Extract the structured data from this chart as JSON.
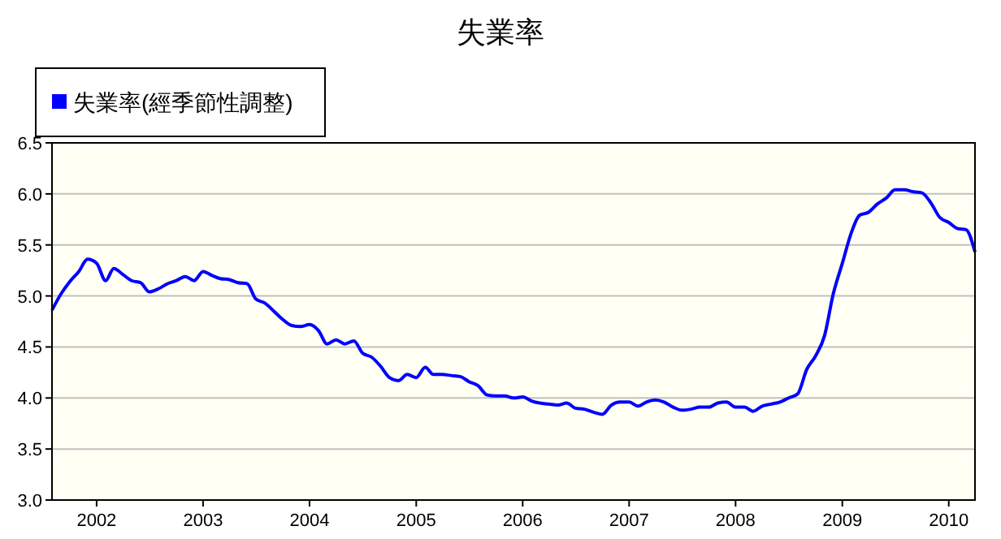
{
  "chart_data": {
    "type": "line",
    "title": "失業率",
    "legend": "top left",
    "grid": "y",
    "marker": "none",
    "line_style": "solid",
    "xlim": [
      "2001-08",
      "2010-04"
    ],
    "xticks": [
      {
        "value": "2002-01",
        "label": "2002"
      },
      {
        "value": "2003-01",
        "label": "2003"
      },
      {
        "value": "2004-01",
        "label": "2004"
      },
      {
        "value": "2005-01",
        "label": "2005"
      },
      {
        "value": "2006-01",
        "label": "2006"
      },
      {
        "value": "2007-01",
        "label": "2007"
      },
      {
        "value": "2008-01",
        "label": "2008"
      },
      {
        "value": "2009-01",
        "label": "2009"
      },
      {
        "value": "2010-01",
        "label": "2010"
      }
    ],
    "ylim": [
      3.0,
      6.5
    ],
    "yticks": [
      {
        "value": 3,
        "label": "3.0"
      },
      {
        "value": 3.5,
        "label": "3.5"
      },
      {
        "value": 4,
        "label": "4.0"
      },
      {
        "value": 4.5,
        "label": "4.5"
      },
      {
        "value": 5,
        "label": "5.0"
      },
      {
        "value": 5.5,
        "label": "5.5"
      },
      {
        "value": 6,
        "label": "6.0"
      },
      {
        "value": 6.5,
        "label": "6.5"
      }
    ],
    "x": [
      "2001-08",
      "2001-09",
      "2001-10",
      "2001-11",
      "2001-12",
      "2002-01",
      "2002-02",
      "2002-03",
      "2002-04",
      "2002-05",
      "2002-06",
      "2002-07",
      "2002-08",
      "2002-09",
      "2002-10",
      "2002-11",
      "2002-12",
      "2003-01",
      "2003-02",
      "2003-03",
      "2003-04",
      "2003-05",
      "2003-06",
      "2003-07",
      "2003-08",
      "2003-09",
      "2003-10",
      "2003-11",
      "2003-12",
      "2004-01",
      "2004-02",
      "2004-03",
      "2004-04",
      "2004-05",
      "2004-06",
      "2004-07",
      "2004-08",
      "2004-09",
      "2004-10",
      "2004-11",
      "2004-12",
      "2005-01",
      "2005-02",
      "2005-03",
      "2005-04",
      "2005-05",
      "2005-06",
      "2005-07",
      "2005-08",
      "2005-09",
      "2005-10",
      "2005-11",
      "2005-12",
      "2006-01",
      "2006-02",
      "2006-03",
      "2006-04",
      "2006-05",
      "2006-06",
      "2006-07",
      "2006-08",
      "2006-09",
      "2006-10",
      "2006-11",
      "2006-12",
      "2007-01",
      "2007-02",
      "2007-03",
      "2007-04",
      "2007-05",
      "2007-06",
      "2007-07",
      "2007-08",
      "2007-09",
      "2007-10",
      "2007-11",
      "2007-12",
      "2008-01",
      "2008-02",
      "2008-03",
      "2008-04",
      "2008-05",
      "2008-06",
      "2008-07",
      "2008-08",
      "2008-09",
      "2008-10",
      "2008-11",
      "2008-12",
      "2009-01",
      "2009-02",
      "2009-03",
      "2009-04",
      "2009-05",
      "2009-06",
      "2009-07",
      "2009-08",
      "2009-09",
      "2009-10",
      "2009-11",
      "2009-12",
      "2010-01",
      "2010-02",
      "2010-03",
      "2010-04"
    ],
    "series": [
      {
        "name": "失業率(經季節性調整)",
        "color": "#0000ff",
        "values": [
          4.86,
          5.02,
          5.14,
          5.24,
          5.36,
          5.32,
          5.15,
          5.27,
          5.21,
          5.15,
          5.13,
          5.04,
          5.07,
          5.12,
          5.15,
          5.19,
          5.15,
          5.24,
          5.2,
          5.17,
          5.16,
          5.13,
          5.12,
          4.97,
          4.93,
          4.85,
          4.77,
          4.71,
          4.7,
          4.72,
          4.66,
          4.53,
          4.57,
          4.53,
          4.56,
          4.44,
          4.4,
          4.31,
          4.2,
          4.17,
          4.23,
          4.2,
          4.3,
          4.23,
          4.23,
          4.22,
          4.21,
          4.16,
          4.12,
          4.03,
          4.02,
          4.02,
          4.0,
          4.01,
          3.97,
          3.95,
          3.94,
          3.93,
          3.95,
          3.9,
          3.89,
          3.86,
          3.84,
          3.93,
          3.96,
          3.96,
          3.92,
          3.96,
          3.98,
          3.96,
          3.91,
          3.88,
          3.89,
          3.91,
          3.91,
          3.95,
          3.96,
          3.91,
          3.91,
          3.87,
          3.92,
          3.94,
          3.96,
          4.0,
          4.04,
          4.28,
          4.41,
          4.61,
          5.02,
          5.32,
          5.62,
          5.79,
          5.82,
          5.9,
          5.96,
          6.04,
          6.04,
          6.02,
          6.01,
          5.91,
          5.77,
          5.72,
          5.66,
          5.65,
          5.43
        ]
      }
    ]
  }
}
